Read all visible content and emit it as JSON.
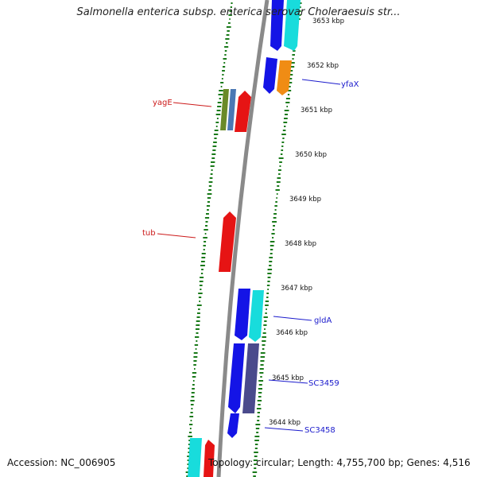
{
  "title": "Salmonella enterica subsp. enterica serovar Choleraesuis str...",
  "footer": {
    "accession": "Accession: NC_006905",
    "summary": "Topology: circular; Length: 4,755,700 bp; Genes: 4,516"
  },
  "colors": {
    "backbone": "#8a8a8a",
    "gc_ticks": "#1a7a1a",
    "forward_cds": "#1414e6",
    "reverse_cds": "#e61414",
    "cyan_gene": "#18dcdc",
    "olive_gene": "#6a8a28",
    "steel_gene": "#4a78b4",
    "orange_gene": "#f08c14",
    "slate_gene": "#4a4a8c",
    "forward_label": "#1a1acc",
    "reverse_label": "#cc1a1a"
  },
  "scale_ticks": [
    "3653 kbp",
    "3652 kbp",
    "3651 kbp",
    "3650 kbp",
    "3649 kbp",
    "3648 kbp",
    "3647 kbp",
    "3646 kbp",
    "3645 kbp",
    "3644 kbp"
  ],
  "gene_labels": [
    {
      "text": "yfaX",
      "strand": "forward"
    },
    {
      "text": "yagE",
      "strand": "reverse"
    },
    {
      "text": "tub",
      "strand": "reverse"
    },
    {
      "text": "gldA",
      "strand": "forward"
    },
    {
      "text": "SC3459",
      "strand": "forward"
    },
    {
      "text": "SC3458",
      "strand": "forward"
    }
  ]
}
